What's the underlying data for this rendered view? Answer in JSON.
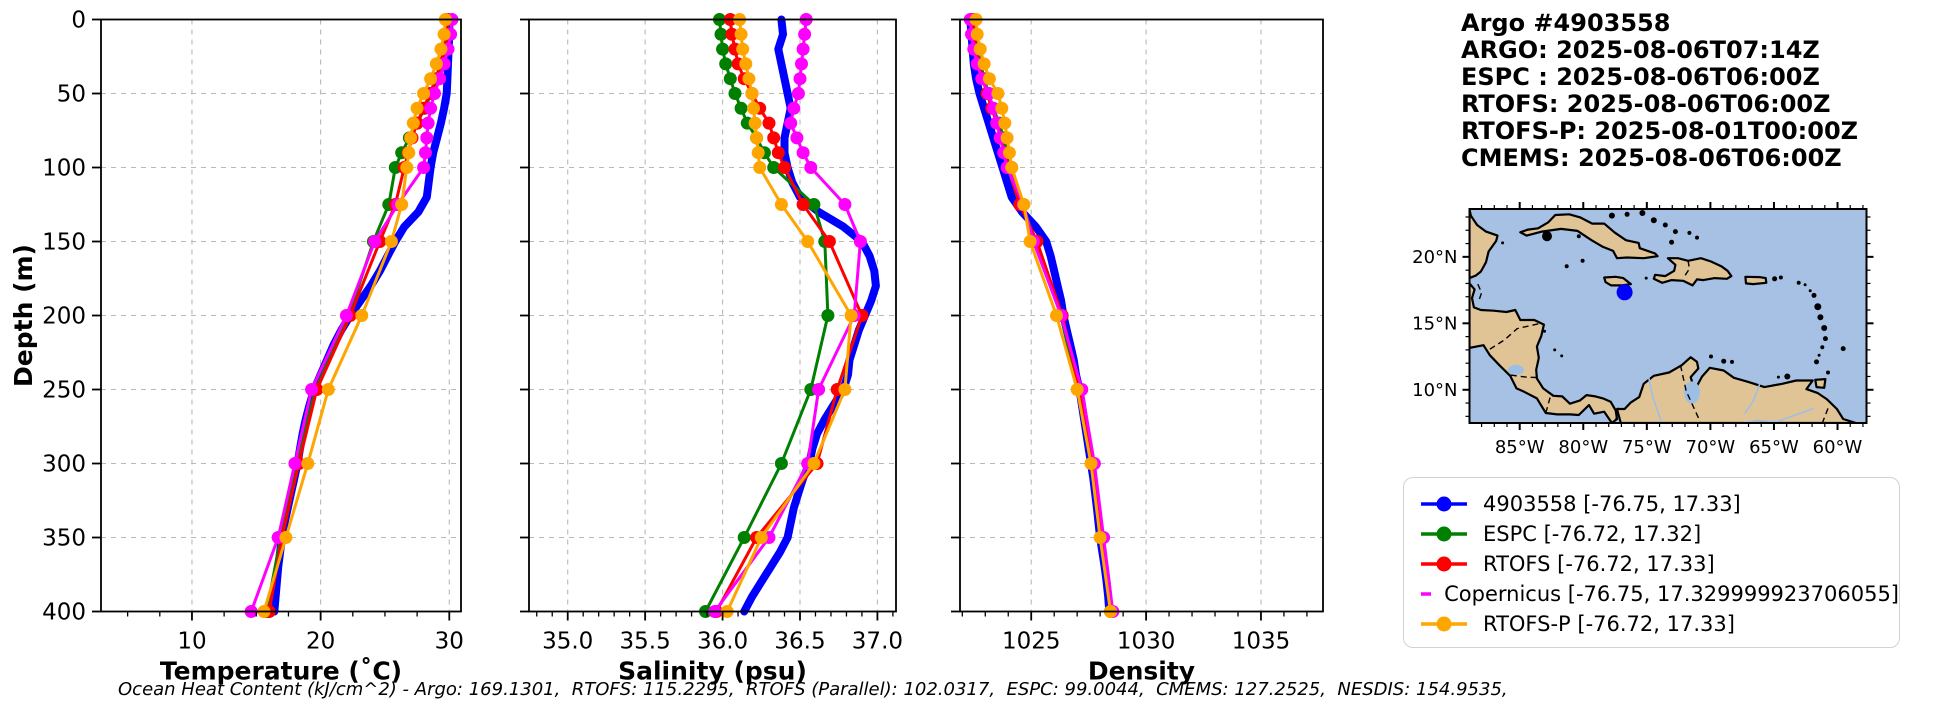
{
  "header": {
    "title": "Argo #4903558",
    "lines": [
      "ARGO: 2025-08-06T07:14Z",
      "ESPC : 2025-08-06T06:00Z",
      "RTOFS: 2025-08-06T06:00Z",
      "RTOFS-P: 2025-08-01T00:00Z",
      "CMEMS: 2025-08-06T06:00Z"
    ]
  },
  "footer": {
    "ohc_text": "Ocean Heat Content (kJ/cm^2) - Argo: 169.1301,  RTOFS: 115.2295,  RTOFS (Parallel): 102.0317,  ESPC: 99.0044,  CMEMS: 127.2525,  NESDIS: 154.9535,"
  },
  "legend": {
    "items": [
      {
        "label": "4903558 [-76.75, 17.33]",
        "color": "#0000ff"
      },
      {
        "label": "ESPC [-76.72, 17.32]",
        "color": "#008000"
      },
      {
        "label": "RTOFS [-76.72, 17.33]",
        "color": "#ff0000"
      },
      {
        "label": "Copernicus [-76.75, 17.329999923706055]",
        "color": "#ff00ff"
      },
      {
        "label": "RTOFS-P [-76.72, 17.33]",
        "color": "#ffa500"
      }
    ]
  },
  "map": {
    "extent": {
      "lon_min": -88.95,
      "lon_max": -57.72,
      "lat_min": 7.5,
      "lat_max": 23.6
    },
    "lat_ticks": [
      {
        "value": 20,
        "label": "20°N"
      },
      {
        "value": 15,
        "label": "15°N"
      },
      {
        "value": 10,
        "label": "10°N"
      }
    ],
    "lon_ticks": [
      {
        "value": -85,
        "label": "85°W"
      },
      {
        "value": -80,
        "label": "80°W"
      },
      {
        "value": -75,
        "label": "75°W"
      },
      {
        "value": -70,
        "label": "70°W"
      },
      {
        "value": -65,
        "label": "65°W"
      },
      {
        "value": -60,
        "label": "60°W"
      }
    ],
    "float_marker": {
      "lon": -76.75,
      "lat": 17.33,
      "color": "#0000ff"
    },
    "ocean_color": "#a6c1e3",
    "land_color": "#e0c496",
    "coast_color": "#000000",
    "river_color": "#9dbfe6"
  },
  "chart_data": {
    "type": "line",
    "ylabel": "Depth (m)",
    "ylim": [
      0,
      400
    ],
    "depth_ticks": [
      0,
      50,
      100,
      150,
      200,
      250,
      300,
      350,
      400
    ],
    "grid": true,
    "legend_position": "lower right outside",
    "panels": [
      {
        "var": "temperature",
        "xlabel": "Temperature (˚C)",
        "xlim": [
          2.93,
          30.91
        ],
        "xticks": [
          10,
          20,
          30
        ],
        "xtick_labels": [
          "10",
          "20",
          "30"
        ],
        "minor_step": 2.5
      },
      {
        "var": "salinity",
        "xlabel": "Salinity (psu)",
        "xlim": [
          34.75,
          37.12
        ],
        "xticks": [
          35.0,
          35.5,
          36.0,
          36.5,
          37.0
        ],
        "xtick_labels": [
          "35.0",
          "35.5",
          "36.0",
          "36.5",
          "37.0"
        ],
        "minor_step": 0.1
      },
      {
        "var": "density",
        "xlabel": "Density",
        "xlim": [
          1021.9,
          1037.7
        ],
        "xticks": [
          1025,
          1030,
          1035
        ],
        "xtick_labels": [
          "1025",
          "1030",
          "1035"
        ],
        "minor_step": 1
      }
    ],
    "series": [
      {
        "name": "4903558",
        "color": "#0000ff",
        "line_width": 8,
        "markers": false,
        "depths": [
          0,
          10,
          20,
          30,
          40,
          50,
          60,
          70,
          80,
          90,
          100,
          110,
          120,
          130,
          140,
          150,
          160,
          170,
          180,
          190,
          200,
          210,
          220,
          230,
          240,
          250,
          260,
          270,
          280,
          290,
          300,
          310,
          320,
          330,
          340,
          350,
          360,
          370,
          380,
          390,
          400
        ],
        "temperature": [
          30.0,
          30.0,
          29.95,
          29.9,
          29.85,
          29.8,
          29.6,
          29.35,
          29.05,
          28.75,
          28.55,
          28.4,
          28.25,
          27.6,
          26.5,
          25.8,
          25.2,
          24.6,
          23.9,
          23.1,
          22.3,
          21.6,
          21.0,
          20.5,
          20.0,
          19.5,
          19.15,
          18.85,
          18.6,
          18.4,
          18.2,
          17.95,
          17.7,
          17.45,
          17.2,
          17.0,
          16.85,
          16.7,
          16.6,
          16.5,
          16.4
        ],
        "salinity": [
          36.38,
          36.39,
          36.36,
          36.38,
          36.4,
          36.42,
          36.44,
          36.42,
          36.4,
          36.4,
          36.42,
          36.45,
          36.5,
          36.62,
          36.78,
          36.9,
          36.95,
          36.98,
          36.99,
          36.96,
          36.92,
          36.88,
          36.85,
          36.82,
          36.81,
          36.78,
          36.72,
          36.66,
          36.61,
          36.58,
          36.56,
          36.52,
          36.49,
          36.46,
          36.44,
          36.42,
          36.37,
          36.31,
          36.25,
          36.19,
          36.14
        ],
        "density": [
          1022.35,
          1022.4,
          1022.45,
          1022.5,
          1022.6,
          1022.75,
          1022.95,
          1023.15,
          1023.35,
          1023.55,
          1023.75,
          1023.95,
          1024.15,
          1024.6,
          1025.2,
          1025.65,
          1025.85,
          1026.0,
          1026.15,
          1026.3,
          1026.4,
          1026.55,
          1026.7,
          1026.85,
          1026.95,
          1027.1,
          1027.2,
          1027.3,
          1027.4,
          1027.5,
          1027.6,
          1027.7,
          1027.78,
          1027.86,
          1027.93,
          1028.0,
          1028.1,
          1028.2,
          1028.28,
          1028.35,
          1028.4
        ]
      },
      {
        "name": "ESPC",
        "color": "#008000",
        "line_width": 3,
        "markers": true,
        "depths": [
          0,
          10,
          20,
          30,
          40,
          50,
          60,
          70,
          80,
          90,
          100,
          125,
          150,
          200,
          250,
          300,
          350,
          400
        ],
        "temperature": [
          29.9,
          29.85,
          29.7,
          29.45,
          29.1,
          28.6,
          28.1,
          27.5,
          26.9,
          26.3,
          25.8,
          25.3,
          24.1,
          22.2,
          19.6,
          18.1,
          16.9,
          15.8
        ],
        "salinity": [
          35.98,
          35.99,
          36.0,
          36.02,
          36.05,
          36.08,
          36.12,
          36.16,
          36.22,
          36.27,
          36.33,
          36.59,
          36.66,
          36.68,
          36.57,
          36.38,
          36.14,
          35.89
        ],
        "density": [
          1022.5,
          1022.55,
          1022.65,
          1022.8,
          1022.95,
          1023.15,
          1023.35,
          1023.6,
          1023.8,
          1023.95,
          1024.15,
          1024.6,
          1025.2,
          1026.3,
          1027.05,
          1027.65,
          1028.05,
          1028.45
        ]
      },
      {
        "name": "RTOFS",
        "color": "#ff0000",
        "line_width": 3,
        "markers": true,
        "depths": [
          0,
          10,
          20,
          30,
          40,
          50,
          60,
          70,
          80,
          90,
          100,
          125,
          150,
          200,
          250,
          300,
          350,
          400
        ],
        "temperature": [
          29.85,
          29.8,
          29.6,
          29.3,
          28.95,
          28.5,
          28.0,
          27.5,
          27.1,
          26.8,
          26.5,
          25.8,
          24.6,
          22.3,
          19.7,
          18.3,
          17.0,
          16.0
        ],
        "salinity": [
          36.05,
          36.06,
          36.08,
          36.1,
          36.14,
          36.19,
          36.24,
          36.3,
          36.33,
          36.36,
          36.4,
          36.52,
          36.69,
          36.9,
          36.74,
          36.61,
          36.22,
          35.96
        ],
        "density": [
          1022.45,
          1022.5,
          1022.6,
          1022.72,
          1022.88,
          1023.08,
          1023.28,
          1023.5,
          1023.68,
          1023.85,
          1024.0,
          1024.5,
          1025.25,
          1026.35,
          1027.1,
          1027.7,
          1028.1,
          1028.5
        ]
      },
      {
        "name": "Copernicus",
        "color": "#ff00ff",
        "line_width": 3,
        "markers": true,
        "depths": [
          0,
          10,
          20,
          30,
          40,
          50,
          60,
          70,
          80,
          90,
          100,
          125,
          150,
          200,
          250,
          300,
          350,
          400
        ],
        "temperature": [
          30.2,
          30.1,
          29.9,
          29.6,
          29.25,
          28.85,
          28.55,
          28.35,
          28.25,
          28.15,
          28.0,
          26.0,
          24.2,
          22.0,
          19.3,
          18.0,
          16.7,
          14.6
        ],
        "salinity": [
          36.54,
          36.53,
          36.52,
          36.51,
          36.5,
          36.49,
          36.46,
          36.44,
          36.48,
          36.52,
          36.57,
          36.79,
          36.89,
          36.85,
          36.62,
          36.55,
          36.3,
          35.95
        ],
        "density": [
          1022.35,
          1022.4,
          1022.5,
          1022.65,
          1022.85,
          1023.15,
          1023.35,
          1023.5,
          1023.65,
          1023.8,
          1023.95,
          1024.65,
          1025.1,
          1026.3,
          1027.2,
          1027.75,
          1028.15,
          1028.55
        ]
      },
      {
        "name": "RTOFS-P",
        "color": "#ffa500",
        "line_width": 3,
        "markers": true,
        "depths": [
          0,
          10,
          20,
          30,
          40,
          50,
          60,
          70,
          80,
          90,
          100,
          125,
          150,
          200,
          250,
          300,
          350,
          400
        ],
        "temperature": [
          29.7,
          29.6,
          29.35,
          29.0,
          28.55,
          28.0,
          27.5,
          27.2,
          27.0,
          26.85,
          26.7,
          26.3,
          25.5,
          23.2,
          20.6,
          19.0,
          17.3,
          15.6
        ],
        "salinity": [
          36.11,
          36.12,
          36.13,
          36.15,
          36.17,
          36.19,
          36.2,
          36.21,
          36.22,
          36.23,
          36.24,
          36.38,
          36.55,
          36.83,
          36.79,
          36.59,
          36.25,
          36.03
        ],
        "density": [
          1022.6,
          1022.65,
          1022.78,
          1022.95,
          1023.18,
          1023.55,
          1023.72,
          1023.85,
          1023.95,
          1024.05,
          1024.15,
          1024.68,
          1024.95,
          1026.1,
          1027.0,
          1027.6,
          1028.0,
          1028.45
        ]
      }
    ]
  }
}
